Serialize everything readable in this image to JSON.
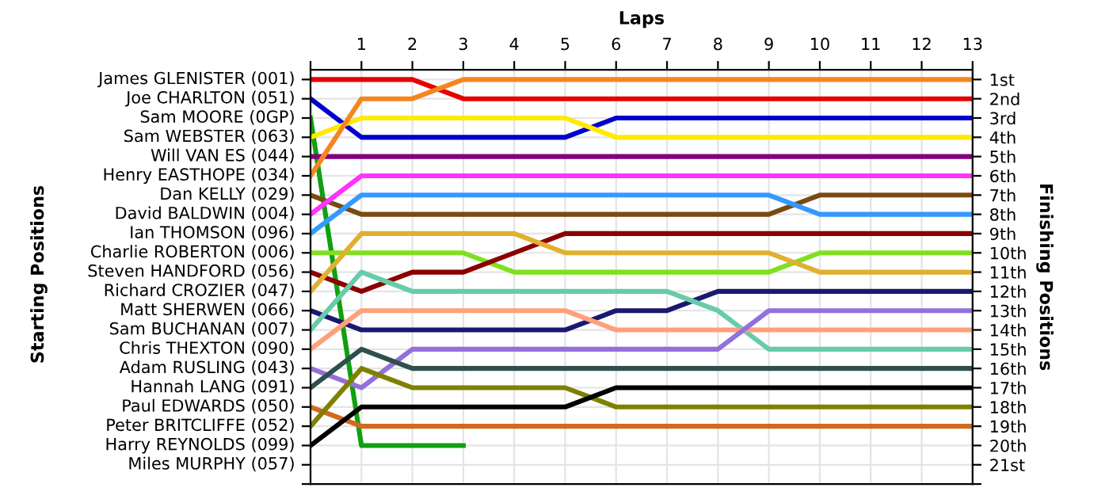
{
  "chart_data": {
    "type": "line",
    "xlabel": "Laps",
    "ylabel": "Finishing Positions",
    "annotations": [
      "Starting Positions",
      "James GLENISTER (001)",
      "Joe CHARLTON (051)",
      "Sam MOORE (0GP)",
      "Sam WEBSTER (063)",
      "Will VAN ES (044)",
      "Henry EASTHOPE (034)",
      "Dan KELLY (029)",
      "David BALDWIN (004)",
      "Ian THOMSON (096)",
      "Charlie ROBERTON (006)",
      "Steven HANDFORD (056)",
      "Richard CROZIER (047)",
      "Matt SHERWEN (066)",
      "Sam BUCHANAN (007)",
      "Chris THEXTON (090)",
      "Adam RUSLING (043)",
      "Hannah LANG (091)",
      "Paul EDWARDS (050)",
      "Peter BRITCLIFFE (052)",
      "Harry REYNOLDS (099)",
      "Miles MURPHY (057)"
    ],
    "x": [
      0,
      1,
      2,
      3,
      4,
      5,
      6,
      7,
      8,
      9,
      10,
      11,
      12,
      13
    ],
    "xlim": [
      0,
      13
    ],
    "xticks": [
      {
        "value": 0,
        "label": null
      },
      1,
      2,
      3,
      4,
      5,
      6,
      7,
      8,
      9,
      10,
      11,
      12,
      13
    ],
    "ylim": [
      22,
      0.5
    ],
    "yticks": [
      {
        "value": 1,
        "label": "1st"
      },
      {
        "value": 2,
        "label": "2nd"
      },
      {
        "value": 3,
        "label": "3rd"
      },
      {
        "value": 4,
        "label": "4th"
      },
      {
        "value": 5,
        "label": "5th"
      },
      {
        "value": 6,
        "label": "6th"
      },
      {
        "value": 7,
        "label": "7th"
      },
      {
        "value": 8,
        "label": "8th"
      },
      {
        "value": 9,
        "label": "9th"
      },
      {
        "value": 10,
        "label": "10th"
      },
      {
        "value": 11,
        "label": "11th"
      },
      {
        "value": 12,
        "label": "12th"
      },
      {
        "value": 13,
        "label": "13th"
      },
      {
        "value": 14,
        "label": "14th"
      },
      {
        "value": 15,
        "label": "15th"
      },
      {
        "value": 16,
        "label": "16th"
      },
      {
        "value": 17,
        "label": "17th"
      },
      {
        "value": 18,
        "label": "18th"
      },
      {
        "value": 19,
        "label": "19th"
      },
      {
        "value": 20,
        "label": "20th"
      },
      {
        "value": 21,
        "label": "21st"
      },
      {
        "value": 22,
        "label": null
      }
    ],
    "grid": true,
    "marker": "none",
    "line_style": "solid",
    "series": [
      {
        "color": "#e60000",
        "values": [
          1,
          1,
          1,
          2,
          2,
          2,
          2,
          2,
          2,
          2,
          2,
          2,
          2,
          2
        ]
      },
      {
        "color": "#0000cd",
        "values": [
          2,
          4,
          4,
          4,
          4,
          4,
          3,
          3,
          3,
          3,
          3,
          3,
          3,
          3
        ]
      },
      {
        "color": "#10a010",
        "values": [
          3,
          20,
          20,
          20,
          null,
          null,
          null,
          null,
          null,
          null,
          null,
          null,
          null,
          null
        ]
      },
      {
        "color": "#ffea00",
        "values": [
          4,
          3,
          3,
          3,
          3,
          3,
          4,
          4,
          4,
          4,
          4,
          4,
          4,
          4
        ]
      },
      {
        "color": "#800080",
        "values": [
          5,
          5,
          5,
          5,
          5,
          5,
          5,
          5,
          5,
          5,
          5,
          5,
          5,
          5
        ]
      },
      {
        "color": "#f5861f",
        "values": [
          6,
          2,
          2,
          1,
          1,
          1,
          1,
          1,
          1,
          1,
          1,
          1,
          1,
          1
        ]
      },
      {
        "color": "#7b4a12",
        "values": [
          7,
          8,
          8,
          8,
          8,
          8,
          8,
          8,
          8,
          8,
          7,
          7,
          7,
          7
        ]
      },
      {
        "color": "#ff33ff",
        "values": [
          8,
          6,
          6,
          6,
          6,
          6,
          6,
          6,
          6,
          6,
          6,
          6,
          6,
          6
        ]
      },
      {
        "color": "#3399ff",
        "values": [
          9,
          7,
          7,
          7,
          7,
          7,
          7,
          7,
          7,
          7,
          8,
          8,
          8,
          8
        ]
      },
      {
        "color": "#80e020",
        "values": [
          10,
          10,
          10,
          10,
          11,
          11,
          11,
          11,
          11,
          11,
          10,
          10,
          10,
          10
        ]
      },
      {
        "color": "#8b0000",
        "values": [
          11,
          12,
          11,
          11,
          10,
          9,
          9,
          9,
          9,
          9,
          9,
          9,
          9,
          9
        ]
      },
      {
        "color": "#e0b030",
        "values": [
          12,
          9,
          9,
          9,
          9,
          10,
          10,
          10,
          10,
          10,
          11,
          11,
          11,
          11
        ]
      },
      {
        "color": "#191970",
        "values": [
          13,
          14,
          14,
          14,
          14,
          14,
          13,
          13,
          12,
          12,
          12,
          12,
          12,
          12
        ]
      },
      {
        "color": "#66ccaa",
        "values": [
          14,
          11,
          12,
          12,
          12,
          12,
          12,
          12,
          13,
          15,
          15,
          15,
          15,
          15
        ]
      },
      {
        "color": "#ffa07a",
        "values": [
          15,
          13,
          13,
          13,
          13,
          13,
          14,
          14,
          14,
          14,
          14,
          14,
          14,
          14
        ]
      },
      {
        "color": "#9370db",
        "values": [
          16,
          17,
          15,
          15,
          15,
          15,
          15,
          15,
          15,
          13,
          13,
          13,
          13,
          13
        ]
      },
      {
        "color": "#2f4f4f",
        "values": [
          17,
          15,
          16,
          16,
          16,
          16,
          16,
          16,
          16,
          16,
          16,
          16,
          16,
          16
        ]
      },
      {
        "color": "#d2691e",
        "values": [
          18,
          19,
          19,
          19,
          19,
          19,
          19,
          19,
          19,
          19,
          19,
          19,
          19,
          19
        ]
      },
      {
        "color": "#808000",
        "values": [
          19,
          16,
          17,
          17,
          17,
          17,
          18,
          18,
          18,
          18,
          18,
          18,
          18,
          18
        ]
      },
      {
        "color": "#000000",
        "values": [
          20,
          18,
          18,
          18,
          18,
          18,
          17,
          17,
          17,
          17,
          17,
          17,
          17,
          17
        ]
      }
    ]
  }
}
